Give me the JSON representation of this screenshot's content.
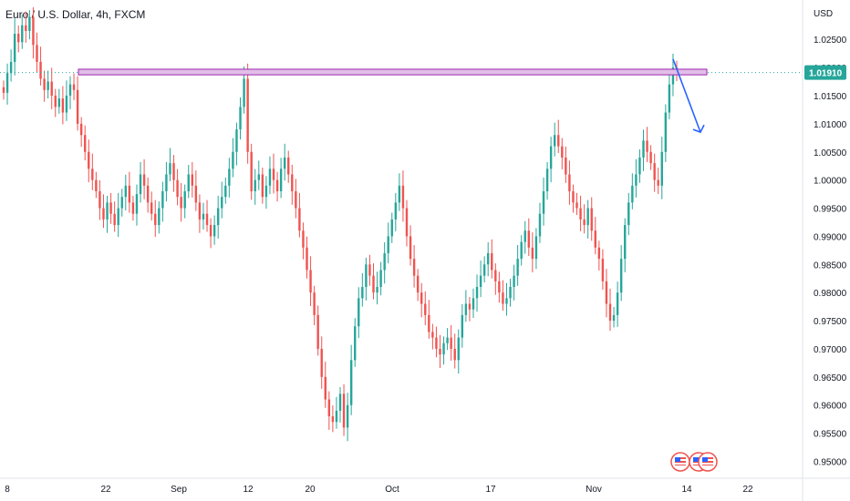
{
  "header": {
    "title": "Euro / U.S. Dollar, 4h, FXCM"
  },
  "colors": {
    "up": "#26a69a",
    "down": "#ef5350",
    "zone_fill": "#e1bee7",
    "zone_stroke": "#9c27b0",
    "arrow": "#2962ff",
    "price_line": "#26a69a",
    "badge": "#26a69a"
  },
  "chart_data": {
    "type": "candlestick",
    "currency": "USD",
    "current_price": "1.01910",
    "ylim": [
      0.947,
      1.032
    ],
    "y_ticks": [
      "1.02500",
      "1.02000",
      "1.01500",
      "1.01000",
      "1.00500",
      "1.00000",
      "0.99500",
      "0.99000",
      "0.98500",
      "0.98000",
      "0.97500",
      "0.97000",
      "0.96500",
      "0.96000",
      "0.95500",
      "0.95000"
    ],
    "x_ticks": [
      "8",
      "22",
      "Sep",
      "12",
      "20",
      "Oct",
      "17",
      "Nov",
      "14",
      "22"
    ],
    "resistance_zone": {
      "low": 1.0187,
      "high": 1.0197,
      "start": "Aug 19",
      "end": "Nov 17"
    },
    "projection": {
      "from": 1.0215,
      "to": 1.0085,
      "direction": "down"
    },
    "closes": [
      1.0155,
      1.019,
      1.021,
      1.026,
      1.0245,
      1.0275,
      1.0265,
      1.029,
      1.024,
      1.021,
      1.018,
      1.016,
      1.0175,
      1.015,
      1.013,
      1.0145,
      1.012,
      1.015,
      1.017,
      1.016,
      1.01,
      1.008,
      1.005,
      1.002,
      1.0,
      0.998,
      0.995,
      0.993,
      0.996,
      0.994,
      0.992,
      0.995,
      0.997,
      0.999,
      0.996,
      0.994,
      0.9975,
      1.001,
      0.999,
      0.996,
      0.994,
      0.992,
      0.995,
      0.998,
      1.001,
      1.003,
      1.0,
      0.997,
      0.995,
      0.998,
      1.001,
      0.999,
      0.996,
      0.993,
      0.994,
      0.992,
      0.99,
      0.992,
      0.995,
      0.997,
      0.999,
      1.002,
      1.005,
      1.009,
      1.013,
      1.018,
      1.005,
      0.998,
      1.0,
      1.001,
      0.997,
      0.999,
      1.002,
      1.0,
      0.998,
      1.002,
      1.004,
      1.001,
      0.998,
      0.995,
      0.991,
      0.988,
      0.984,
      0.98,
      0.976,
      0.97,
      0.965,
      0.961,
      0.958,
      0.957,
      0.959,
      0.962,
      0.956,
      0.96,
      0.968,
      0.974,
      0.979,
      0.981,
      0.985,
      0.983,
      0.98,
      0.981,
      0.984,
      0.987,
      0.99,
      0.993,
      0.996,
      0.999,
      0.995,
      0.99,
      0.986,
      0.983,
      0.98,
      0.978,
      0.976,
      0.973,
      0.972,
      0.97,
      0.969,
      0.971,
      0.972,
      0.97,
      0.968,
      0.972,
      0.976,
      0.978,
      0.977,
      0.979,
      0.981,
      0.983,
      0.985,
      0.987,
      0.984,
      0.982,
      0.98,
      0.978,
      0.979,
      0.981,
      0.983,
      0.986,
      0.989,
      0.991,
      0.988,
      0.986,
      0.99,
      0.994,
      0.998,
      1.002,
      1.006,
      1.008,
      1.006,
      1.004,
      1.001,
      0.998,
      0.996,
      0.995,
      0.993,
      0.992,
      0.995,
      0.991,
      0.988,
      0.986,
      0.982,
      0.978,
      0.975,
      0.976,
      0.98,
      0.986,
      0.992,
      0.996,
      0.999,
      1.001,
      1.004,
      1.007,
      1.005,
      1.003,
      1.0,
      0.999,
      1.005,
      1.012,
      1.017,
      1.02,
      1.0191
    ]
  }
}
